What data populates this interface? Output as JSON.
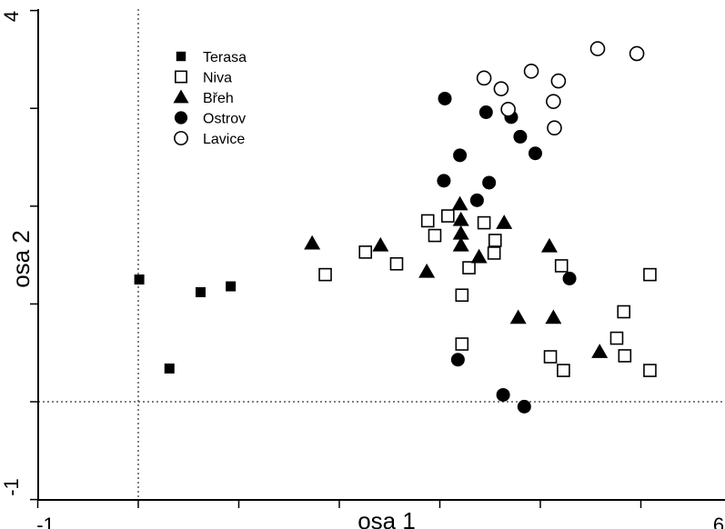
{
  "chart_data": {
    "type": "scatter",
    "xlabel": "osa 1",
    "ylabel": "osa 2",
    "xlim": [
      -1,
      6
    ],
    "ylim": [
      -1,
      4
    ],
    "x_tick_labels": [
      "-1",
      "6"
    ],
    "y_tick_labels": [
      "-1",
      "4"
    ],
    "x_ticks": [
      -1,
      0,
      1,
      2,
      3,
      4,
      5,
      6
    ],
    "y_ticks": [
      -1,
      0,
      1,
      2,
      3,
      4
    ],
    "reference_lines": {
      "x": 0,
      "y": 0
    },
    "legend_position": "top-left",
    "series": [
      {
        "name": "Terasa",
        "marker": "filled-square",
        "points": [
          [
            0.01,
            1.25
          ],
          [
            0.31,
            0.34
          ],
          [
            0.62,
            1.12
          ],
          [
            0.92,
            1.18
          ]
        ]
      },
      {
        "name": "Niva",
        "marker": "open-square",
        "points": [
          [
            1.86,
            1.3
          ],
          [
            2.26,
            1.53
          ],
          [
            2.57,
            1.41
          ],
          [
            2.88,
            1.85
          ],
          [
            2.95,
            1.7
          ],
          [
            3.08,
            1.9
          ],
          [
            3.22,
            1.09
          ],
          [
            3.29,
            1.37
          ],
          [
            3.44,
            1.83
          ],
          [
            3.54,
            1.52
          ],
          [
            3.55,
            1.65
          ],
          [
            3.22,
            0.59
          ],
          [
            4.1,
            0.46
          ],
          [
            4.21,
            1.39
          ],
          [
            4.23,
            0.32
          ],
          [
            4.76,
            0.65
          ],
          [
            4.83,
            0.92
          ],
          [
            4.84,
            0.47
          ],
          [
            5.09,
            0.32
          ],
          [
            5.09,
            1.3
          ]
        ]
      },
      {
        "name": "Břeh",
        "marker": "filled-triangle",
        "points": [
          [
            1.73,
            1.62
          ],
          [
            2.41,
            1.6
          ],
          [
            2.87,
            1.33
          ],
          [
            3.2,
            2.02
          ],
          [
            3.21,
            1.86
          ],
          [
            3.21,
            1.72
          ],
          [
            3.21,
            1.6
          ],
          [
            3.39,
            1.48
          ],
          [
            3.64,
            1.83
          ],
          [
            3.78,
            0.86
          ],
          [
            4.09,
            1.59
          ],
          [
            4.13,
            0.86
          ],
          [
            4.59,
            0.51
          ]
        ]
      },
      {
        "name": "Ostrov",
        "marker": "filled-circle",
        "points": [
          [
            3.05,
            3.1
          ],
          [
            3.46,
            2.96
          ],
          [
            3.71,
            2.91
          ],
          [
            3.2,
            2.52
          ],
          [
            3.04,
            2.26
          ],
          [
            3.49,
            2.24
          ],
          [
            3.37,
            2.06
          ],
          [
            3.95,
            2.54
          ],
          [
            3.8,
            2.71
          ],
          [
            4.29,
            1.26
          ],
          [
            3.18,
            0.43
          ],
          [
            3.63,
            0.07
          ],
          [
            3.84,
            -0.05
          ]
        ]
      },
      {
        "name": "Lavice",
        "marker": "open-circle",
        "points": [
          [
            3.44,
            3.31
          ],
          [
            3.61,
            3.2
          ],
          [
            3.91,
            3.38
          ],
          [
            4.18,
            3.28
          ],
          [
            4.57,
            3.61
          ],
          [
            4.96,
            3.56
          ],
          [
            3.68,
            2.99
          ],
          [
            4.13,
            3.07
          ],
          [
            4.14,
            2.8
          ]
        ]
      }
    ]
  }
}
